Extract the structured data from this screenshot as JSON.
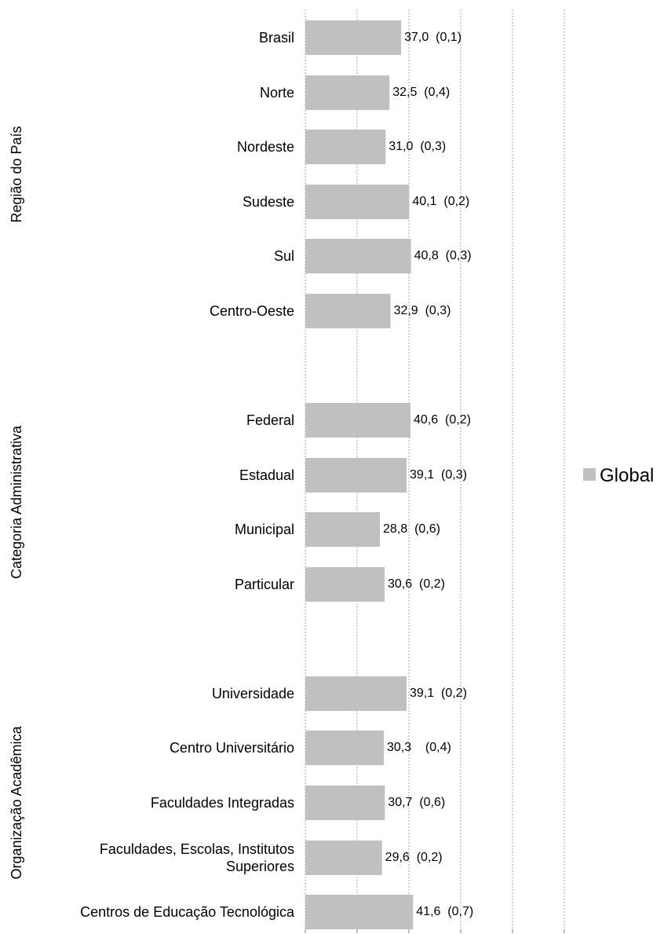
{
  "chart_data": {
    "type": "bar",
    "orientation": "horizontal",
    "groups": [
      {
        "name": "Região do País",
        "categories": [
          "Brasil",
          "Norte",
          "Nordeste",
          "Sudeste",
          "Sul",
          "Centro-Oeste"
        ],
        "values": [
          37.0,
          32.5,
          31.0,
          40.1,
          40.8,
          32.9
        ],
        "labels": [
          "37,0  (0,1)",
          "32,5  (0,4)",
          "31,0  (0,3)",
          "40,1  (0,2)",
          "40,8  (0,3)",
          "32,9  (0,3)"
        ]
      },
      {
        "name": "Categoria Administrativa",
        "categories": [
          "Federal",
          "Estadual",
          "Municipal",
          "Particular"
        ],
        "values": [
          40.6,
          39.1,
          28.8,
          30.6
        ],
        "labels": [
          "40,6  (0,2)",
          "39,1  (0,3)",
          "28,8  (0,6)",
          "30,6  (0,2)"
        ]
      },
      {
        "name": "Organização Acadêmica",
        "categories": [
          "Universidade",
          "Centro Universitário",
          "Faculdades Integradas",
          "Faculdades, Escolas, Institutos Superiores",
          "Centros de Educação Tecnológica"
        ],
        "category_lines": [
          [
            "Universidade"
          ],
          [
            "Centro Universitário"
          ],
          [
            "Faculdades Integradas"
          ],
          [
            "Faculdades, Escolas, Institutos",
            "Superiores"
          ],
          [
            "Centros de Educação Tecnológica"
          ]
        ],
        "values": [
          39.1,
          30.3,
          30.7,
          29.6,
          41.6
        ],
        "labels": [
          "39,1  (0,2)",
          "30,3    (0,4)",
          "30,7  (0,6)",
          "29,6  (0,2)",
          "41,6  (0,7)"
        ]
      }
    ],
    "series": [
      {
        "name": "Global",
        "color": "#c0c0c0"
      }
    ],
    "xlim": [
      0,
      100
    ],
    "grid": true,
    "legend": "right"
  }
}
